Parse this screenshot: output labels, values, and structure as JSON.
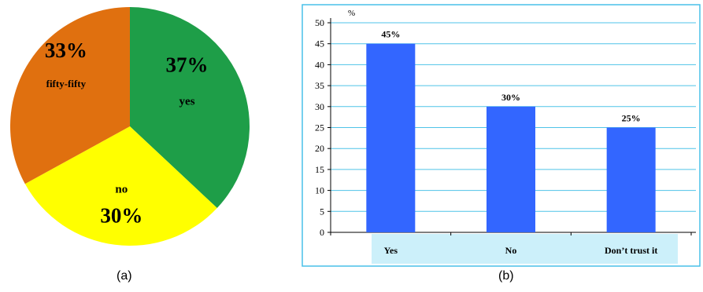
{
  "chart_data": [
    {
      "type": "pie",
      "caption": "(a)",
      "slices": [
        {
          "label": "yes",
          "value": 37,
          "value_label": "37%",
          "color": "#1e9e48"
        },
        {
          "label": "no",
          "value": 30,
          "value_label": "30%",
          "color": "#ffff00"
        },
        {
          "label": "fifty-fifty",
          "value": 33,
          "value_label": "33%",
          "color": "#e0700f"
        }
      ]
    },
    {
      "type": "bar",
      "caption": "(b)",
      "ylabel": "%",
      "ylim": [
        0,
        50
      ],
      "yticks": [
        0,
        5,
        10,
        15,
        20,
        25,
        30,
        35,
        40,
        45,
        50
      ],
      "categories": [
        "Yes",
        "No",
        "Don’t trust it"
      ],
      "values": [
        45,
        30,
        25
      ],
      "data_labels": [
        "45%",
        "30%",
        "25%"
      ],
      "grid": true,
      "colors": {
        "bar": "#3366ff",
        "grid": "#4fc3e8",
        "category_band": "#ccf0fa",
        "frame": "#48c0e8"
      }
    }
  ]
}
